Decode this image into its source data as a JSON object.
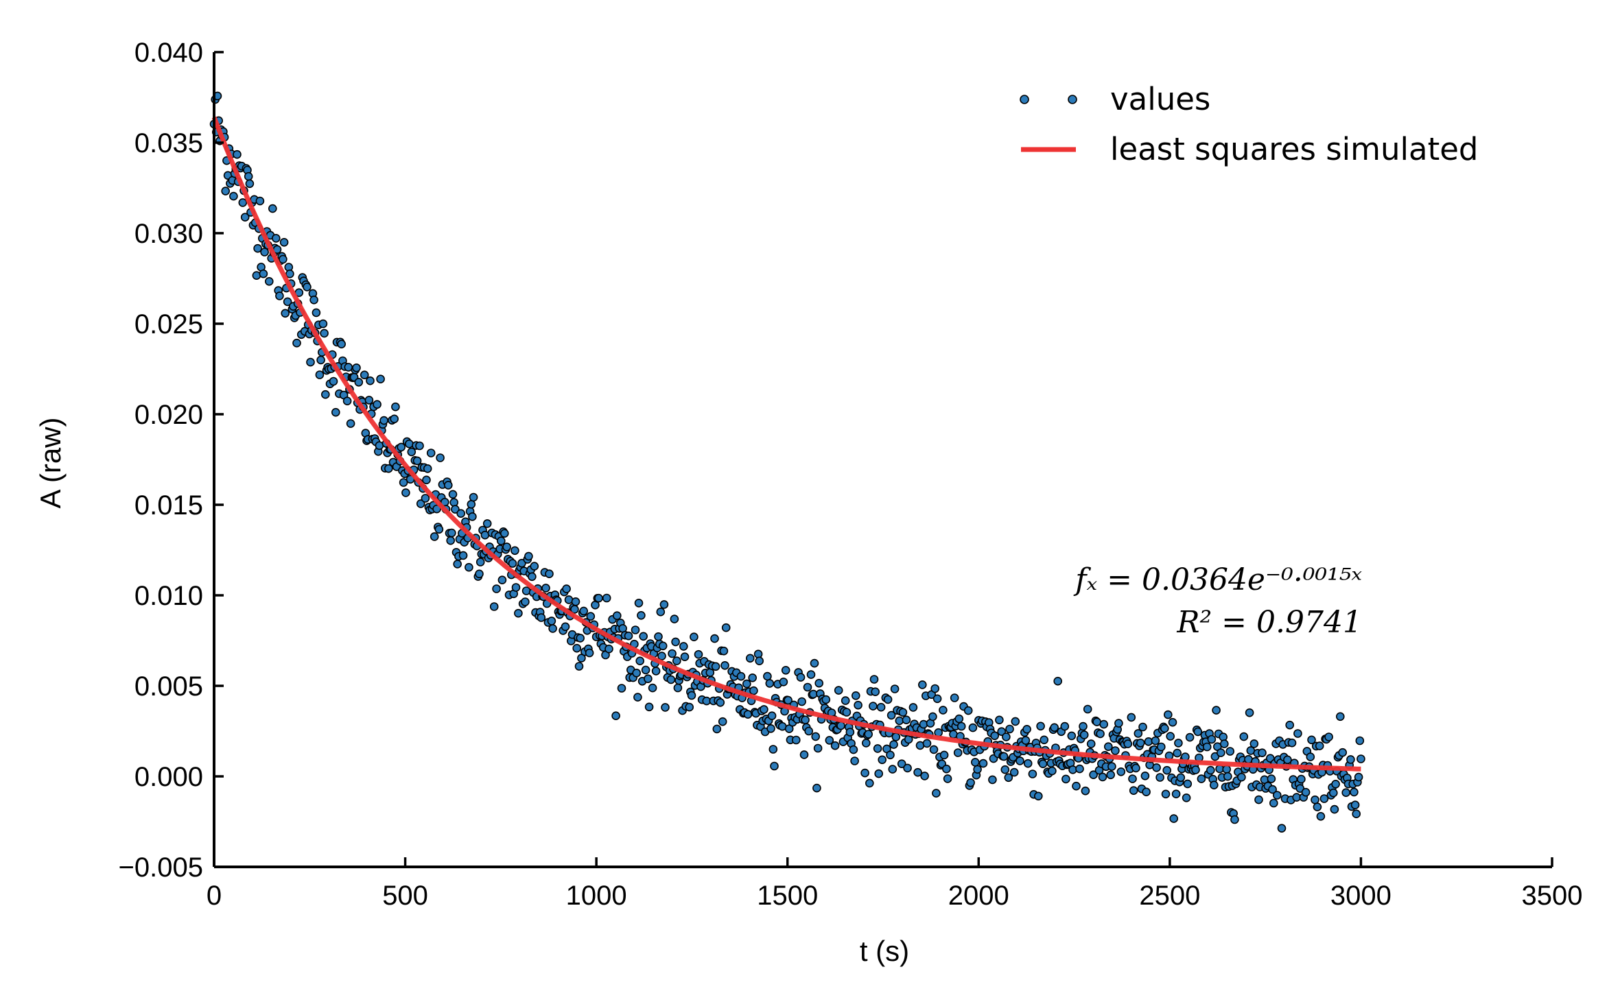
{
  "chart_data": {
    "type": "scatter",
    "xlabel": "t (s)",
    "ylabel": "A (raw)",
    "xlim": [
      0,
      3500
    ],
    "ylim": [
      -0.005,
      0.04
    ],
    "x_ticks": [
      "0",
      "500",
      "1000",
      "1500",
      "2000",
      "2500",
      "3000",
      "3500"
    ],
    "y_ticks": [
      "−0.005",
      "0.000",
      "0.005",
      "0.010",
      "0.015",
      "0.020",
      "0.025",
      "0.030",
      "0.035",
      "0.040"
    ],
    "grid": false,
    "legend": "top-right",
    "series": [
      {
        "name": "values",
        "kind": "scatter",
        "color": "#2b7bba",
        "x_range": [
          0,
          3000
        ],
        "n_points": 1000,
        "amplitude": 0.0364,
        "rate": 0.0015,
        "noise_sd": 0.0012
      },
      {
        "name": "least squares simulated",
        "kind": "line",
        "color": "#ee3333",
        "x_range": [
          0,
          3000
        ],
        "amplitude": 0.0364,
        "rate": 0.0015
      }
    ],
    "annotation": {
      "line1": "fₓ = 0.0364e⁻⁰·⁰⁰¹⁵ˣ",
      "line2": "R² = 0.9741"
    }
  }
}
